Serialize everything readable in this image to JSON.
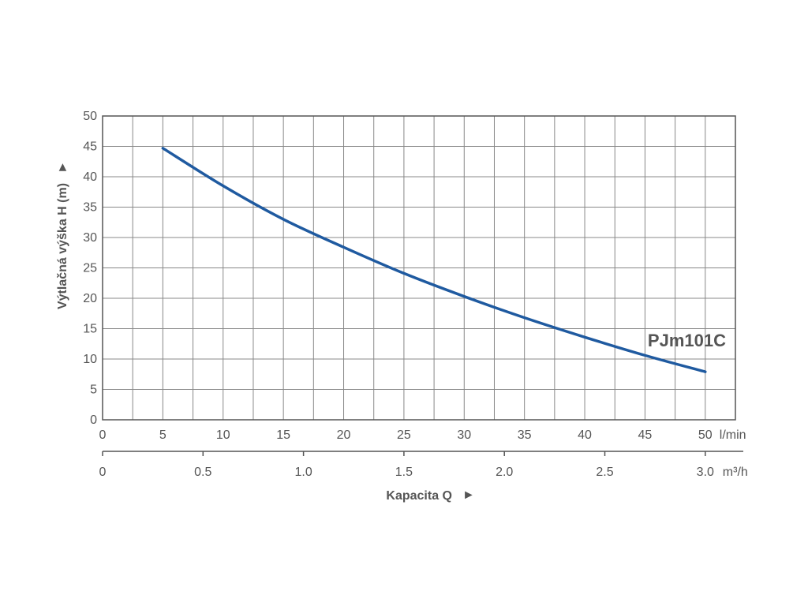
{
  "chart_data": {
    "type": "line",
    "ylabel": "Výtlačná výška H (m)",
    "ylabel_arrow": "►",
    "xlabel": "Kapacita Q",
    "xlabel_arrow": "►",
    "x_unit": "l/min",
    "x2_unit": "m³/h",
    "xlim": [
      0,
      52.5
    ],
    "ylim": [
      0,
      50
    ],
    "x_ticks": [
      0,
      5,
      10,
      15,
      20,
      25,
      30,
      35,
      40,
      45,
      50
    ],
    "x2_ticks": [
      "0",
      "0.5",
      "1.0",
      "1.5",
      "2.0",
      "2.5",
      "3.0"
    ],
    "x2_tick_values_lpm": [
      0,
      8.333,
      16.667,
      25,
      33.333,
      41.667,
      50
    ],
    "y_ticks": [
      0,
      5,
      10,
      15,
      20,
      25,
      30,
      35,
      40,
      45,
      50
    ],
    "grid": true,
    "colors": {
      "series": "#1f5aa0",
      "grid": "#888888",
      "text": "#555555"
    },
    "series": [
      {
        "name": "PJm101C",
        "x": [
          5,
          10,
          15,
          20,
          25,
          30,
          35,
          40,
          45,
          50
        ],
        "y": [
          44.7,
          38.5,
          33.0,
          28.4,
          24.1,
          20.3,
          16.8,
          13.6,
          10.6,
          7.9
        ]
      }
    ]
  }
}
